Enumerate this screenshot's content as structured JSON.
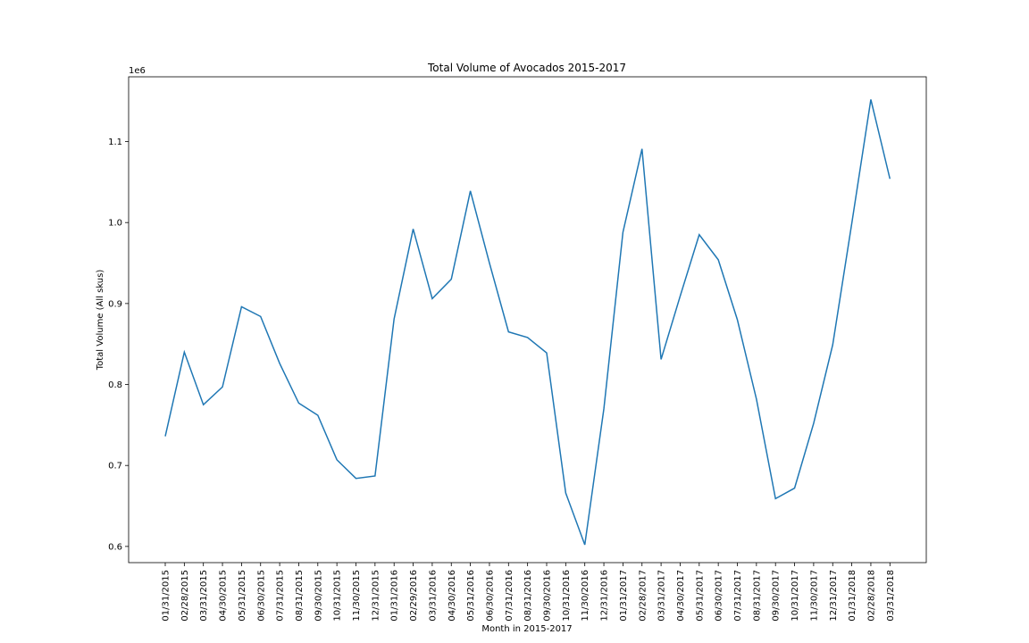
{
  "chart_data": {
    "type": "line",
    "title": "Total Volume of Avocados 2015-2017",
    "xlabel": "Month in 2015-2017",
    "ylabel": "Total Volume (All skus)",
    "offset_label": "1e6",
    "y_scale_multiplier": 1000000,
    "ylim": [
      0.58,
      1.18
    ],
    "yticks": [
      0.6,
      0.7,
      0.8,
      0.9,
      1.0,
      1.1
    ],
    "ytick_labels": [
      "0.6",
      "0.7",
      "0.8",
      "0.9",
      "1.0",
      "1.1"
    ],
    "grid": false,
    "line_color": "#1f77b4",
    "categories": [
      "01/31/2015",
      "02/28/2015",
      "03/31/2015",
      "04/30/2015",
      "05/31/2015",
      "06/30/2015",
      "07/31/2015",
      "08/31/2015",
      "09/30/2015",
      "10/31/2015",
      "11/30/2015",
      "12/31/2015",
      "01/31/2016",
      "02/29/2016",
      "03/31/2016",
      "04/30/2016",
      "05/31/2016",
      "06/30/2016",
      "07/31/2016",
      "08/31/2016",
      "09/30/2016",
      "10/31/2016",
      "11/30/2016",
      "12/31/2016",
      "01/31/2017",
      "02/28/2017",
      "03/31/2017",
      "04/30/2017",
      "05/31/2017",
      "06/30/2017",
      "07/31/2017",
      "08/31/2017",
      "09/30/2017",
      "10/31/2017",
      "11/30/2017",
      "12/31/2017",
      "01/31/2018",
      "02/28/2018",
      "03/31/2018"
    ],
    "values": [
      0.736,
      0.84,
      0.775,
      0.797,
      0.896,
      0.884,
      0.826,
      0.777,
      0.762,
      0.707,
      0.684,
      0.687,
      0.881,
      0.992,
      0.906,
      0.93,
      1.039,
      0.95,
      0.865,
      0.858,
      0.839,
      0.666,
      0.602,
      0.77,
      0.988,
      1.091,
      0.831,
      0.909,
      0.985,
      0.954,
      0.88,
      0.782,
      0.659,
      0.672,
      0.752,
      0.849,
      0.999,
      1.152,
      1.054
    ]
  }
}
